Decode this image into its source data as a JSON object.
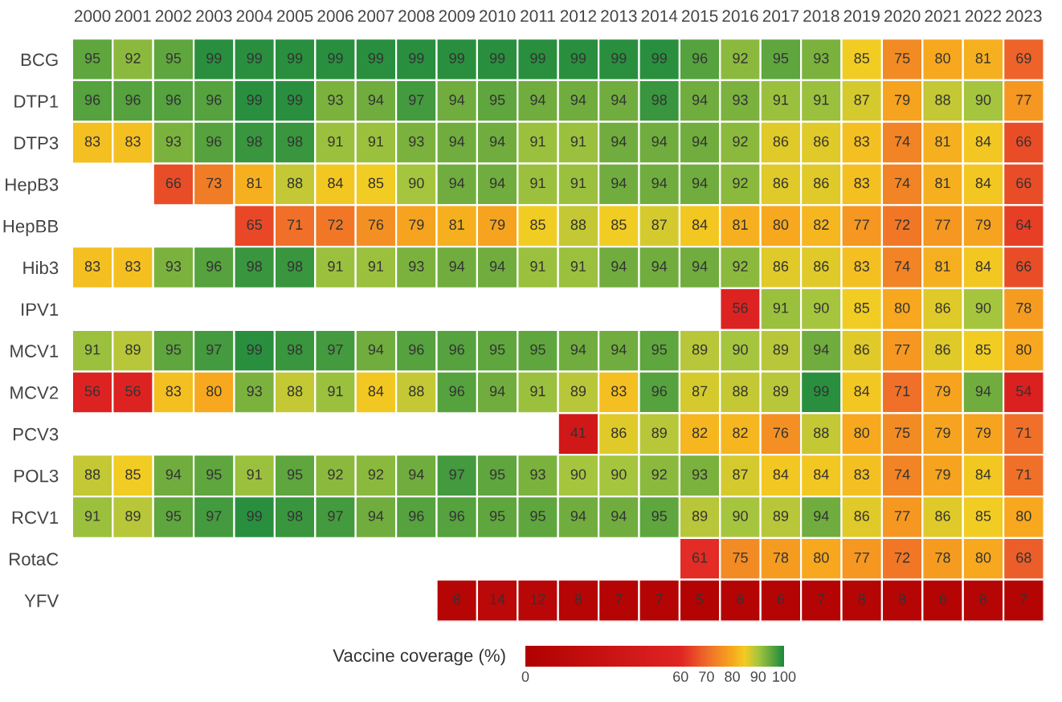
{
  "chart_data": {
    "type": "heatmap",
    "clabel": "Vaccine coverage (%)",
    "categories": [
      "2000",
      "2001",
      "2002",
      "2003",
      "2004",
      "2005",
      "2006",
      "2007",
      "2008",
      "2009",
      "2010",
      "2011",
      "2012",
      "2013",
      "2014",
      "2015",
      "2016",
      "2017",
      "2018",
      "2019",
      "2020",
      "2021",
      "2022",
      "2023"
    ],
    "y_categories": [
      "BCG",
      "DTP1",
      "DTP3",
      "HepB3",
      "HepBB",
      "Hib3",
      "IPV1",
      "MCV1",
      "MCV2",
      "PCV3",
      "POL3",
      "RCV1",
      "RotaC",
      "YFV"
    ],
    "cells": [
      [
        95,
        92,
        95,
        99,
        99,
        99,
        99,
        99,
        99,
        99,
        99,
        99,
        99,
        99,
        99,
        96,
        92,
        95,
        93,
        85,
        75,
        80,
        81,
        69
      ],
      [
        96,
        96,
        96,
        96,
        99,
        99,
        93,
        94,
        97,
        94,
        95,
        94,
        94,
        94,
        98,
        94,
        93,
        91,
        91,
        87,
        79,
        88,
        90,
        77
      ],
      [
        83,
        83,
        93,
        96,
        98,
        98,
        91,
        91,
        93,
        94,
        94,
        91,
        91,
        94,
        94,
        94,
        92,
        86,
        86,
        83,
        74,
        81,
        84,
        66
      ],
      [
        null,
        null,
        66,
        73,
        81,
        88,
        84,
        85,
        90,
        94,
        94,
        91,
        91,
        94,
        94,
        94,
        92,
        86,
        86,
        83,
        74,
        81,
        84,
        66
      ],
      [
        null,
        null,
        null,
        null,
        65,
        71,
        72,
        76,
        79,
        81,
        79,
        85,
        88,
        85,
        87,
        84,
        81,
        80,
        82,
        77,
        72,
        77,
        79,
        64
      ],
      [
        83,
        83,
        93,
        96,
        98,
        98,
        91,
        91,
        93,
        94,
        94,
        91,
        91,
        94,
        94,
        94,
        92,
        86,
        86,
        83,
        74,
        81,
        84,
        66
      ],
      [
        null,
        null,
        null,
        null,
        null,
        null,
        null,
        null,
        null,
        null,
        null,
        null,
        null,
        null,
        null,
        null,
        56,
        91,
        90,
        85,
        80,
        86,
        90,
        78
      ],
      [
        91,
        89,
        95,
        97,
        99,
        98,
        97,
        94,
        96,
        96,
        95,
        95,
        94,
        94,
        95,
        89,
        90,
        89,
        94,
        86,
        77,
        86,
        85,
        80
      ],
      [
        56,
        56,
        83,
        80,
        93,
        88,
        91,
        84,
        88,
        96,
        94,
        91,
        89,
        83,
        96,
        87,
        88,
        89,
        99,
        84,
        71,
        79,
        94,
        54
      ],
      [
        null,
        null,
        null,
        null,
        null,
        null,
        null,
        null,
        null,
        null,
        null,
        null,
        41,
        86,
        89,
        82,
        82,
        76,
        88,
        80,
        75,
        79,
        79,
        71
      ],
      [
        88,
        85,
        94,
        95,
        91,
        95,
        92,
        92,
        94,
        97,
        95,
        93,
        90,
        90,
        92,
        93,
        87,
        84,
        84,
        83,
        74,
        79,
        84,
        71
      ],
      [
        91,
        89,
        95,
        97,
        99,
        98,
        97,
        94,
        96,
        96,
        95,
        95,
        94,
        94,
        95,
        89,
        90,
        89,
        94,
        86,
        77,
        86,
        85,
        80
      ],
      [
        null,
        null,
        null,
        null,
        null,
        null,
        null,
        null,
        null,
        null,
        null,
        null,
        null,
        null,
        null,
        61,
        75,
        78,
        80,
        77,
        72,
        78,
        80,
        68
      ],
      [
        null,
        null,
        null,
        null,
        null,
        null,
        null,
        null,
        null,
        8,
        14,
        12,
        8,
        7,
        7,
        5,
        6,
        6,
        7,
        8,
        8,
        6,
        8,
        7
      ]
    ],
    "clim": [
      0,
      100
    ],
    "cticks": [
      0,
      60,
      70,
      80,
      90,
      100
    ],
    "data_labels": true
  }
}
